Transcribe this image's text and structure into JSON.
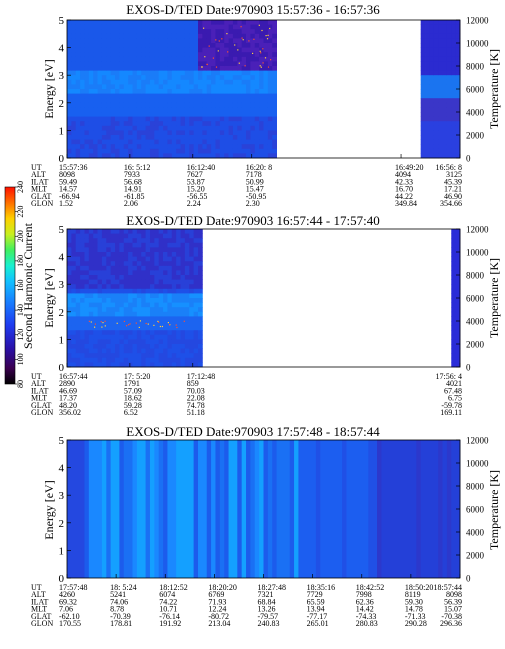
{
  "chart_data": [
    {
      "type": "heatmap",
      "title": "EXOS-D/TED   Date:970903   15:57:36 - 16:57:36",
      "ylabel": "Energy [eV]",
      "y2label": "Temperature [K]",
      "ylim": [
        0,
        5
      ],
      "yticks": [
        "0",
        "1",
        "2",
        "3",
        "4",
        "5"
      ],
      "y2lim": [
        0,
        12000
      ],
      "y2ticks": [
        "0",
        "2000",
        "4000",
        "6000",
        "8000",
        "10000",
        "12000"
      ],
      "data_coverage": [
        [
          0.0,
          0.53
        ],
        [
          0.9,
          1.0
        ]
      ],
      "table": {
        "row_labels": [
          "UT",
          "ALT",
          "ILAT",
          "MLT",
          "GLAT",
          "GLON"
        ],
        "columns": [
          {
            "pos": 0.0,
            "values": [
              "15:57:36",
              "8098",
              "59.49",
              "14.57",
              "-66.94",
              "1.52"
            ]
          },
          {
            "pos": 0.16,
            "values": [
              "16: 5:12",
              "7933",
              "56.68",
              "14.91",
              "-61.85",
              "2.06"
            ]
          },
          {
            "pos": 0.32,
            "values": [
              "16:12:40",
              "7627",
              "53.87",
              "15.20",
              "-56.55",
              "2.24"
            ]
          },
          {
            "pos": 0.47,
            "values": [
              "16:20: 8",
              "7178",
              "50.99",
              "15.47",
              "-50.95",
              "2.30"
            ]
          },
          {
            "pos": 0.85,
            "values": [
              "16:49:20",
              "4094",
              "42.33",
              "16.70",
              "44.22",
              "349.84"
            ]
          },
          {
            "pos": 1.0,
            "values": [
              "16:56: 8",
              "3125",
              "45.39",
              "17.21",
              "46.90",
              "354.66"
            ]
          }
        ]
      }
    },
    {
      "type": "heatmap",
      "title": "EXOS-D/TED   Date:970903   16:57:44 - 17:57:40",
      "ylabel": "Energy [eV]",
      "y2label": "Temperature [K]",
      "ylim": [
        0,
        5
      ],
      "yticks": [
        "0",
        "1",
        "2",
        "3",
        "4",
        "5"
      ],
      "y2lim": [
        0,
        12000
      ],
      "y2ticks": [
        "0",
        "2000",
        "4000",
        "6000",
        "8000",
        "10000",
        "12000"
      ],
      "data_coverage": [
        [
          0.0,
          0.34
        ],
        [
          0.975,
          1.0
        ]
      ],
      "table": {
        "row_labels": [
          "UT",
          "ALT",
          "ILAT",
          "MLT",
          "GLAT",
          "GLON"
        ],
        "columns": [
          {
            "pos": 0.0,
            "values": [
              "16:57:44",
              "2890",
              "46.69",
              "17.37",
              "48.20",
              "356.02"
            ]
          },
          {
            "pos": 0.16,
            "values": [
              "17: 5:20",
              "1791",
              "57.09",
              "18.62",
              "59.28",
              "6.52"
            ]
          },
          {
            "pos": 0.32,
            "values": [
              "17:12:48",
              "859",
              "70.03",
              "22.08",
              "74.78",
              "51.18"
            ]
          },
          {
            "pos": 1.0,
            "values": [
              "17:56: 4",
              "4021",
              "67.48",
              "6.75",
              "-59.78",
              "169.11"
            ]
          }
        ]
      }
    },
    {
      "type": "heatmap",
      "title": "EXOS-D/TED   Date:970903   17:57:48 - 18:57:44",
      "ylabel": "Energy [eV]",
      "y2label": "Temperature [K]",
      "ylim": [
        0,
        5
      ],
      "yticks": [
        "0",
        "1",
        "2",
        "3",
        "4",
        "5"
      ],
      "y2lim": [
        0,
        12000
      ],
      "y2ticks": [
        "0",
        "2000",
        "4000",
        "6000",
        "8000",
        "10000",
        "12000"
      ],
      "data_coverage": [
        [
          0.0,
          1.0
        ]
      ],
      "table": {
        "row_labels": [
          "UT",
          "ALT",
          "ILAT",
          "MLT",
          "GLAT",
          "GLON"
        ],
        "columns": [
          {
            "pos": 0.0,
            "values": [
              "17:57:48",
              "4260",
              "69.32",
              "7.06",
              "-62.10",
              "170.55"
            ]
          },
          {
            "pos": 0.125,
            "values": [
              "18: 5:24",
              "5241",
              "74.06",
              "8.78",
              "-70.39",
              "178.81"
            ]
          },
          {
            "pos": 0.25,
            "values": [
              "18:12:52",
              "6074",
              "74.22",
              "10.71",
              "-76.14",
              "191.92"
            ]
          },
          {
            "pos": 0.375,
            "values": [
              "18:20:20",
              "6769",
              "71.93",
              "12.24",
              "-80.72",
              "213.04"
            ]
          },
          {
            "pos": 0.5,
            "values": [
              "18:27:48",
              "7321",
              "68.84",
              "13.26",
              "-79.57",
              "240.83"
            ]
          },
          {
            "pos": 0.625,
            "values": [
              "18:35:16",
              "7729",
              "65.59",
              "13.94",
              "-77.17",
              "265.01"
            ]
          },
          {
            "pos": 0.75,
            "values": [
              "18:42:52",
              "7998",
              "62.36",
              "14.42",
              "-74.33",
              "280.83"
            ]
          },
          {
            "pos": 0.875,
            "values": [
              "18:50:20",
              "8119",
              "59.30",
              "14.78",
              "-71.33",
              "290.28"
            ]
          },
          {
            "pos": 1.0,
            "values": [
              "18:57:44",
              "8098",
              "56.39",
              "15.07",
              "-70.38",
              "296.36"
            ]
          }
        ]
      }
    }
  ],
  "colorbar": {
    "label": "Second Harmonic Current",
    "ticks": [
      "80",
      "100",
      "120",
      "140",
      "160",
      "180",
      "200",
      "220",
      "240"
    ],
    "range": [
      80,
      240
    ],
    "colors": [
      "#000000",
      "#3a0050",
      "#2a10a8",
      "#1e3cf0",
      "#1880ff",
      "#12c0ff",
      "#18f0d0",
      "#40f060",
      "#c8f020",
      "#ffd000",
      "#ff7000",
      "#ff1000"
    ]
  }
}
